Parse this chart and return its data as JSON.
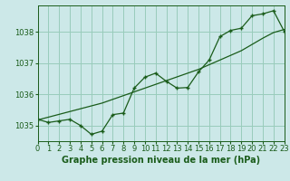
{
  "title": "Graphe pression niveau de la mer (hPa)",
  "background_color": "#cce8e8",
  "grid_color": "#99ccbb",
  "line_color": "#1a5c1a",
  "x_hours": [
    0,
    1,
    2,
    3,
    4,
    5,
    6,
    7,
    8,
    9,
    10,
    11,
    12,
    13,
    14,
    15,
    16,
    17,
    18,
    19,
    20,
    21,
    22,
    23
  ],
  "y_data": [
    1035.2,
    1035.1,
    1035.15,
    1035.2,
    1035.0,
    1034.72,
    1034.82,
    1035.35,
    1035.4,
    1036.2,
    1036.55,
    1036.68,
    1036.42,
    1036.2,
    1036.22,
    1036.72,
    1037.1,
    1037.85,
    1038.05,
    1038.12,
    1038.52,
    1038.58,
    1038.68,
    1038.02
  ],
  "y_trend": [
    1035.18,
    1035.27,
    1035.36,
    1035.45,
    1035.54,
    1035.63,
    1035.72,
    1035.84,
    1035.96,
    1036.08,
    1036.2,
    1036.32,
    1036.44,
    1036.56,
    1036.68,
    1036.8,
    1036.95,
    1037.1,
    1037.25,
    1037.4,
    1037.6,
    1037.8,
    1037.98,
    1038.08
  ],
  "ylim": [
    1034.5,
    1038.85
  ],
  "yticks": [
    1035,
    1036,
    1037,
    1038
  ],
  "xlim": [
    0,
    23
  ],
  "tick_fontsize": 6,
  "title_fontsize": 7
}
